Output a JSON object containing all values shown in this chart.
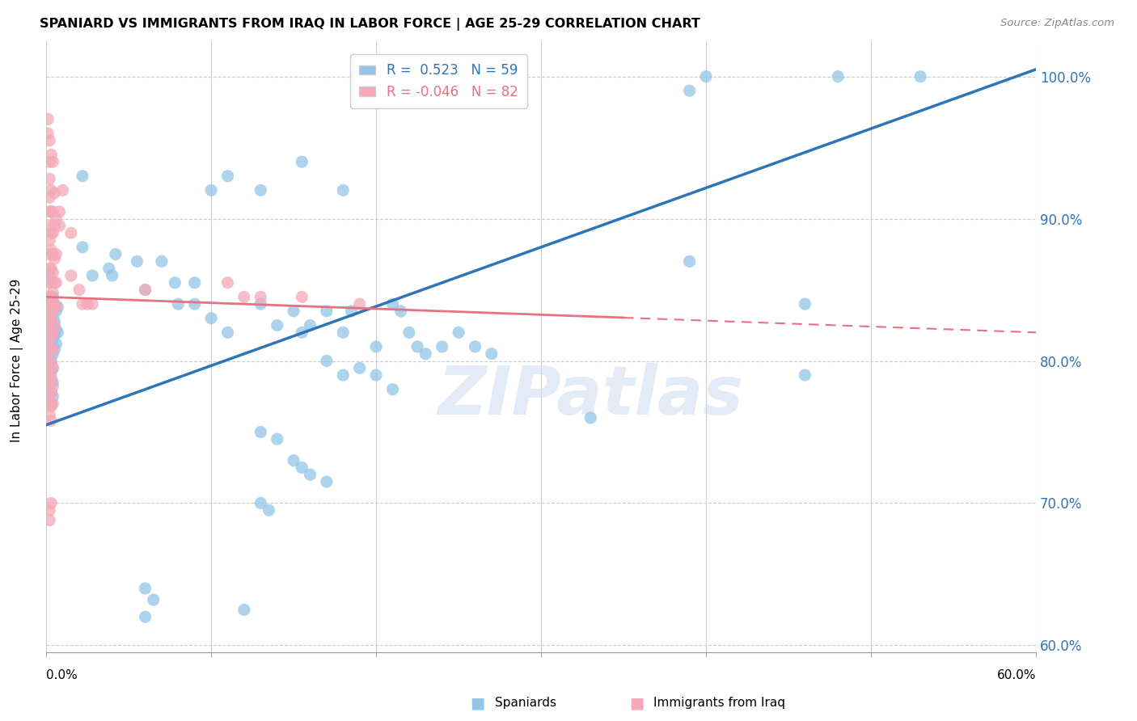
{
  "title": "SPANIARD VS IMMIGRANTS FROM IRAQ IN LABOR FORCE | AGE 25-29 CORRELATION CHART",
  "source": "Source: ZipAtlas.com",
  "ylabel": "In Labor Force | Age 25-29",
  "y_ticks": [
    0.6,
    0.7,
    0.8,
    0.9,
    1.0
  ],
  "y_tick_labels": [
    "60.0%",
    "70.0%",
    "80.0%",
    "90.0%",
    "100.0%"
  ],
  "xmin": 0.0,
  "xmax": 0.6,
  "ymin": 0.595,
  "ymax": 1.025,
  "legend_blue_r": "0.523",
  "legend_blue_n": "59",
  "legend_pink_r": "-0.046",
  "legend_pink_n": "82",
  "blue_color": "#92C5E8",
  "pink_color": "#F4A8B8",
  "blue_line_color": "#2E75B6",
  "pink_line_color": "#E87080",
  "watermark": "ZIPatlas",
  "blue_scatter": [
    [
      0.002,
      0.86
    ],
    [
      0.002,
      0.845
    ],
    [
      0.003,
      0.838
    ],
    [
      0.003,
      0.83
    ],
    [
      0.003,
      0.822
    ],
    [
      0.003,
      0.815
    ],
    [
      0.003,
      0.808
    ],
    [
      0.003,
      0.8
    ],
    [
      0.003,
      0.792
    ],
    [
      0.003,
      0.785
    ],
    [
      0.003,
      0.778
    ],
    [
      0.003,
      0.77
    ],
    [
      0.004,
      0.845
    ],
    [
      0.004,
      0.838
    ],
    [
      0.004,
      0.825
    ],
    [
      0.004,
      0.815
    ],
    [
      0.004,
      0.805
    ],
    [
      0.004,
      0.795
    ],
    [
      0.004,
      0.785
    ],
    [
      0.004,
      0.775
    ],
    [
      0.005,
      0.84
    ],
    [
      0.005,
      0.828
    ],
    [
      0.005,
      0.818
    ],
    [
      0.005,
      0.808
    ],
    [
      0.006,
      0.835
    ],
    [
      0.006,
      0.822
    ],
    [
      0.006,
      0.812
    ],
    [
      0.007,
      0.838
    ],
    [
      0.007,
      0.82
    ],
    [
      0.022,
      0.93
    ],
    [
      0.022,
      0.88
    ],
    [
      0.028,
      0.86
    ],
    [
      0.038,
      0.865
    ],
    [
      0.04,
      0.86
    ],
    [
      0.042,
      0.875
    ],
    [
      0.055,
      0.87
    ],
    [
      0.06,
      0.85
    ],
    [
      0.07,
      0.87
    ],
    [
      0.078,
      0.855
    ],
    [
      0.09,
      0.855
    ],
    [
      0.1,
      0.92
    ],
    [
      0.11,
      0.93
    ],
    [
      0.13,
      0.92
    ],
    [
      0.155,
      0.94
    ],
    [
      0.18,
      0.92
    ],
    [
      0.08,
      0.84
    ],
    [
      0.09,
      0.84
    ],
    [
      0.1,
      0.83
    ],
    [
      0.11,
      0.82
    ],
    [
      0.13,
      0.84
    ],
    [
      0.14,
      0.825
    ],
    [
      0.15,
      0.835
    ],
    [
      0.155,
      0.82
    ],
    [
      0.16,
      0.825
    ],
    [
      0.17,
      0.835
    ],
    [
      0.18,
      0.82
    ],
    [
      0.185,
      0.835
    ],
    [
      0.2,
      0.81
    ],
    [
      0.21,
      0.84
    ],
    [
      0.215,
      0.835
    ],
    [
      0.22,
      0.82
    ],
    [
      0.225,
      0.81
    ],
    [
      0.23,
      0.805
    ],
    [
      0.24,
      0.81
    ],
    [
      0.25,
      0.82
    ],
    [
      0.26,
      0.81
    ],
    [
      0.27,
      0.805
    ],
    [
      0.17,
      0.8
    ],
    [
      0.18,
      0.79
    ],
    [
      0.19,
      0.795
    ],
    [
      0.2,
      0.79
    ],
    [
      0.21,
      0.78
    ],
    [
      0.13,
      0.75
    ],
    [
      0.14,
      0.745
    ],
    [
      0.15,
      0.73
    ],
    [
      0.155,
      0.725
    ],
    [
      0.16,
      0.72
    ],
    [
      0.17,
      0.715
    ],
    [
      0.13,
      0.7
    ],
    [
      0.135,
      0.695
    ],
    [
      0.06,
      0.64
    ],
    [
      0.065,
      0.632
    ],
    [
      0.12,
      0.625
    ],
    [
      0.39,
      0.99
    ],
    [
      0.4,
      1.0
    ],
    [
      0.48,
      1.0
    ],
    [
      0.53,
      1.0
    ],
    [
      0.39,
      0.87
    ],
    [
      0.46,
      0.84
    ],
    [
      0.46,
      0.79
    ],
    [
      0.33,
      0.76
    ],
    [
      0.06,
      0.62
    ]
  ],
  "pink_scatter": [
    [
      0.001,
      0.97
    ],
    [
      0.001,
      0.96
    ],
    [
      0.002,
      0.955
    ],
    [
      0.002,
      0.94
    ],
    [
      0.002,
      0.928
    ],
    [
      0.002,
      0.915
    ],
    [
      0.002,
      0.905
    ],
    [
      0.002,
      0.895
    ],
    [
      0.002,
      0.885
    ],
    [
      0.002,
      0.875
    ],
    [
      0.002,
      0.865
    ],
    [
      0.002,
      0.855
    ],
    [
      0.002,
      0.845
    ],
    [
      0.002,
      0.838
    ],
    [
      0.002,
      0.83
    ],
    [
      0.002,
      0.822
    ],
    [
      0.002,
      0.815
    ],
    [
      0.002,
      0.808
    ],
    [
      0.002,
      0.8
    ],
    [
      0.002,
      0.792
    ],
    [
      0.002,
      0.785
    ],
    [
      0.002,
      0.778
    ],
    [
      0.002,
      0.77
    ],
    [
      0.002,
      0.762
    ],
    [
      0.003,
      0.945
    ],
    [
      0.003,
      0.92
    ],
    [
      0.003,
      0.905
    ],
    [
      0.003,
      0.89
    ],
    [
      0.003,
      0.878
    ],
    [
      0.003,
      0.865
    ],
    [
      0.003,
      0.855
    ],
    [
      0.003,
      0.845
    ],
    [
      0.003,
      0.838
    ],
    [
      0.003,
      0.828
    ],
    [
      0.003,
      0.818
    ],
    [
      0.003,
      0.808
    ],
    [
      0.003,
      0.798
    ],
    [
      0.003,
      0.788
    ],
    [
      0.003,
      0.778
    ],
    [
      0.003,
      0.768
    ],
    [
      0.003,
      0.758
    ],
    [
      0.004,
      0.94
    ],
    [
      0.004,
      0.905
    ],
    [
      0.004,
      0.89
    ],
    [
      0.004,
      0.875
    ],
    [
      0.004,
      0.862
    ],
    [
      0.004,
      0.848
    ],
    [
      0.004,
      0.835
    ],
    [
      0.004,
      0.82
    ],
    [
      0.004,
      0.808
    ],
    [
      0.004,
      0.795
    ],
    [
      0.004,
      0.782
    ],
    [
      0.004,
      0.77
    ],
    [
      0.005,
      0.918
    ],
    [
      0.005,
      0.895
    ],
    [
      0.005,
      0.872
    ],
    [
      0.005,
      0.855
    ],
    [
      0.005,
      0.84
    ],
    [
      0.005,
      0.825
    ],
    [
      0.006,
      0.9
    ],
    [
      0.006,
      0.875
    ],
    [
      0.006,
      0.855
    ],
    [
      0.006,
      0.838
    ],
    [
      0.008,
      0.905
    ],
    [
      0.008,
      0.895
    ],
    [
      0.01,
      0.92
    ],
    [
      0.015,
      0.89
    ],
    [
      0.015,
      0.86
    ],
    [
      0.02,
      0.85
    ],
    [
      0.022,
      0.84
    ],
    [
      0.025,
      0.84
    ],
    [
      0.002,
      0.695
    ],
    [
      0.002,
      0.688
    ],
    [
      0.003,
      0.7
    ],
    [
      0.028,
      0.84
    ],
    [
      0.11,
      0.855
    ],
    [
      0.13,
      0.845
    ],
    [
      0.155,
      0.845
    ],
    [
      0.19,
      0.84
    ],
    [
      0.12,
      0.845
    ],
    [
      0.06,
      0.85
    ]
  ]
}
